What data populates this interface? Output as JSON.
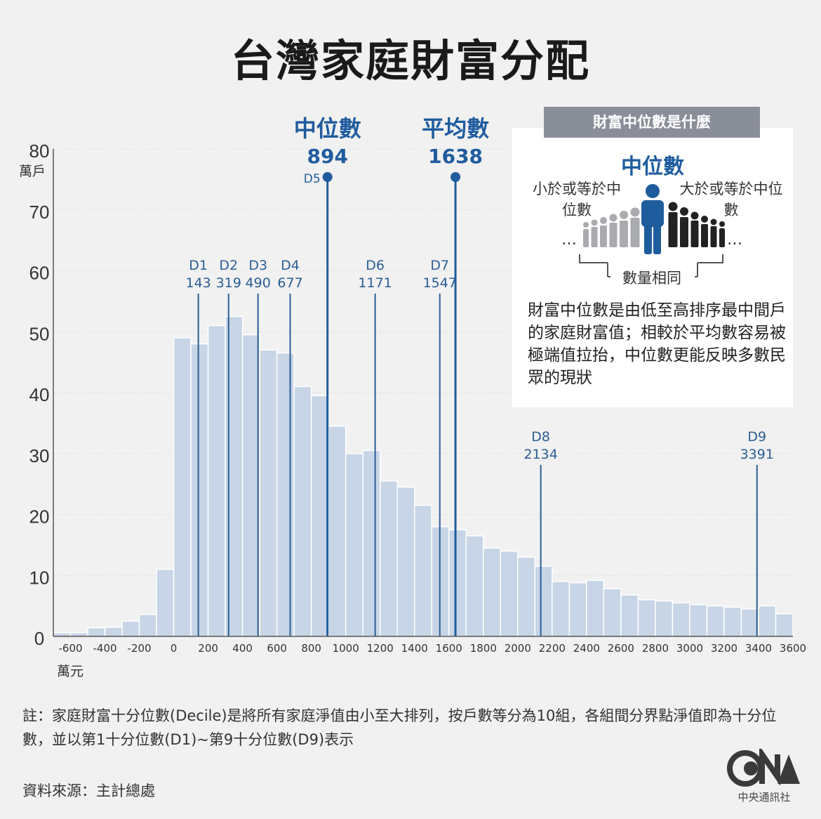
{
  "title": "台灣家庭財富分配",
  "chart_data": {
    "type": "bar",
    "ylabel": "萬戶",
    "xlabel": "萬元",
    "ylim": [
      0,
      80
    ],
    "yticks": [
      0,
      10,
      20,
      30,
      40,
      50,
      60,
      70,
      80
    ],
    "xlim": [
      -700,
      3600
    ],
    "xticks": [
      -600,
      -400,
      -200,
      0,
      200,
      400,
      600,
      800,
      1000,
      1200,
      1400,
      1600,
      1800,
      2000,
      2200,
      2400,
      2600,
      2800,
      3000,
      3200,
      3400,
      3600
    ],
    "bin_width": 100,
    "bin_starts": [
      -700,
      -600,
      -500,
      -400,
      -300,
      -200,
      -100,
      0,
      100,
      200,
      300,
      400,
      500,
      600,
      700,
      800,
      900,
      1000,
      1100,
      1200,
      1300,
      1400,
      1500,
      1600,
      1700,
      1800,
      1900,
      2000,
      2100,
      2200,
      2300,
      2400,
      2500,
      2600,
      2700,
      2800,
      2900,
      3000,
      3100,
      3200,
      3300,
      3400,
      3500
    ],
    "values": [
      0.6,
      0.6,
      1.4,
      1.5,
      2.5,
      3.6,
      11.0,
      49.0,
      48.0,
      51.0,
      52.5,
      49.5,
      47.0,
      46.5,
      41.0,
      39.5,
      34.5,
      30.0,
      30.5,
      25.5,
      24.5,
      21.5,
      18.0,
      17.5,
      16.5,
      14.5,
      14.0,
      13.0,
      11.5,
      9.0,
      8.8,
      9.2,
      7.8,
      6.8,
      6.0,
      5.8,
      5.5,
      5.2,
      5.0,
      4.8,
      4.5,
      5.0,
      3.7
    ],
    "deciles": [
      {
        "label": "D1",
        "value": 143
      },
      {
        "label": "D2",
        "value": 319
      },
      {
        "label": "D3",
        "value": 490
      },
      {
        "label": "D4",
        "value": 677
      },
      {
        "label": "D6",
        "value": 1171
      },
      {
        "label": "D7",
        "value": 1547
      },
      {
        "label": "D8",
        "value": 2134
      },
      {
        "label": "D9",
        "value": 3391
      }
    ],
    "highlights": [
      {
        "name": "中位數",
        "value": 894,
        "tag": "D5"
      },
      {
        "name": "平均數",
        "value": 1638,
        "tag": ""
      }
    ]
  },
  "panel": {
    "header": "財富中位數是什麼",
    "median_label": "中位數",
    "left_label": "小於或等於中位數",
    "right_label": "大於或等於中位數",
    "same_label": "數量相同",
    "description": "財富中位數是由低至高排序最中間戶的家庭財富值；相較於平均數容易被極端值拉抬，中位數更能反映多數民眾的現狀"
  },
  "note": "註：家庭財富十分位數(Decile)是將所有家庭淨值由小至大排列，按戶數等分為10組，各組間分界點淨值即為十分位數，並以第1十分位數(D1)~第9十分位數(D9)表示",
  "source": "資料來源：主計總處",
  "logo_text": "中央通訊社",
  "colors": {
    "bar": "#c7d5e6",
    "bar_edge": "#ffffff",
    "marker": "#1f5c9e",
    "decile_line": "#2b5e95",
    "grid": "#dcdcdc"
  }
}
